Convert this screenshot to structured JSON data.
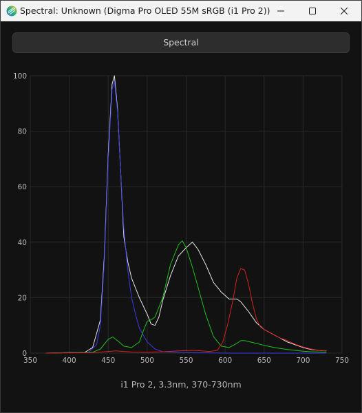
{
  "window": {
    "title": "Spectral: Unknown (Digma Pro OLED 55M sRGB (i1 Pro 2))",
    "controls": {
      "minimize": "minimize",
      "maximize": "maximize",
      "close": "close"
    }
  },
  "toolbar": {
    "button_label": "Spectral"
  },
  "colors": {
    "background": "#121212",
    "grid": "#2a2a2a",
    "white_series": "#e6e6e6",
    "blue_series": "#3a3ae8",
    "green_series": "#22c022",
    "red_series": "#d82020",
    "tick_text": "#bdbdbd"
  },
  "footer": {
    "caption": "i1 Pro 2, 3.3nm, 370-730nm"
  },
  "chart_data": {
    "type": "line",
    "title": "",
    "xlabel": "",
    "ylabel": "",
    "xlim": [
      350,
      750
    ],
    "ylim": [
      0,
      100
    ],
    "x_ticks": [
      350,
      400,
      450,
      500,
      550,
      600,
      650,
      700,
      750
    ],
    "y_ticks": [
      0,
      20,
      40,
      60,
      80,
      100
    ],
    "grid": true,
    "legend": "none",
    "series": [
      {
        "color": "#e6e6e6",
        "points": [
          [
            370,
            0
          ],
          [
            420,
            0.3
          ],
          [
            430,
            2
          ],
          [
            440,
            12
          ],
          [
            445,
            35
          ],
          [
            450,
            72
          ],
          [
            455,
            97
          ],
          [
            458,
            100
          ],
          [
            462,
            88
          ],
          [
            466,
            65
          ],
          [
            470,
            42
          ],
          [
            475,
            33
          ],
          [
            480,
            27
          ],
          [
            490,
            20
          ],
          [
            500,
            14
          ],
          [
            505,
            10.5
          ],
          [
            510,
            10
          ],
          [
            515,
            13
          ],
          [
            520,
            19
          ],
          [
            530,
            28
          ],
          [
            540,
            35
          ],
          [
            550,
            38
          ],
          [
            558,
            40
          ],
          [
            565,
            37.5
          ],
          [
            575,
            32
          ],
          [
            585,
            25.5
          ],
          [
            595,
            22
          ],
          [
            605,
            19.5
          ],
          [
            615,
            19.5
          ],
          [
            620,
            18.5
          ],
          [
            630,
            15
          ],
          [
            640,
            11
          ],
          [
            650,
            8.5
          ],
          [
            660,
            7
          ],
          [
            670,
            5.5
          ],
          [
            680,
            4
          ],
          [
            690,
            3
          ],
          [
            700,
            2
          ],
          [
            710,
            1.3
          ],
          [
            720,
            1
          ],
          [
            730,
            0.8
          ]
        ]
      },
      {
        "color": "#3a3ae8",
        "points": [
          [
            370,
            0
          ],
          [
            425,
            0.3
          ],
          [
            435,
            3
          ],
          [
            440,
            10
          ],
          [
            445,
            33
          ],
          [
            450,
            70
          ],
          [
            455,
            95
          ],
          [
            458,
            98
          ],
          [
            462,
            87
          ],
          [
            466,
            65
          ],
          [
            470,
            45
          ],
          [
            475,
            30
          ],
          [
            480,
            20
          ],
          [
            485,
            14
          ],
          [
            490,
            9
          ],
          [
            500,
            4
          ],
          [
            510,
            1.5
          ],
          [
            520,
            0.5
          ],
          [
            540,
            0.3
          ],
          [
            600,
            0
          ],
          [
            730,
            0
          ]
        ]
      },
      {
        "color": "#22c022",
        "points": [
          [
            370,
            0
          ],
          [
            430,
            0.3
          ],
          [
            440,
            1.5
          ],
          [
            450,
            5
          ],
          [
            456,
            5.8
          ],
          [
            462,
            4.5
          ],
          [
            470,
            2.5
          ],
          [
            480,
            2
          ],
          [
            490,
            4
          ],
          [
            495,
            8
          ],
          [
            500,
            11.5
          ],
          [
            505,
            12
          ],
          [
            510,
            13
          ],
          [
            520,
            20
          ],
          [
            530,
            32
          ],
          [
            540,
            39
          ],
          [
            545,
            40.5
          ],
          [
            550,
            38
          ],
          [
            558,
            31
          ],
          [
            565,
            24
          ],
          [
            575,
            14
          ],
          [
            585,
            6
          ],
          [
            595,
            2.5
          ],
          [
            605,
            2
          ],
          [
            615,
            3.5
          ],
          [
            620,
            4.5
          ],
          [
            625,
            4.5
          ],
          [
            630,
            4.2
          ],
          [
            640,
            3.5
          ],
          [
            650,
            2.8
          ],
          [
            660,
            2.2
          ],
          [
            670,
            1.7
          ],
          [
            680,
            1.3
          ],
          [
            690,
            1
          ],
          [
            700,
            0.7
          ],
          [
            710,
            0.5
          ],
          [
            730,
            0.3
          ]
        ]
      },
      {
        "color": "#d82020",
        "points": [
          [
            370,
            0
          ],
          [
            430,
            0.2
          ],
          [
            450,
            0.6
          ],
          [
            460,
            0.8
          ],
          [
            470,
            0.6
          ],
          [
            480,
            0.4
          ],
          [
            500,
            0.3
          ],
          [
            520,
            0.5
          ],
          [
            540,
            0.8
          ],
          [
            560,
            1
          ],
          [
            580,
            0.6
          ],
          [
            590,
            1
          ],
          [
            597,
            4
          ],
          [
            603,
            10
          ],
          [
            610,
            19
          ],
          [
            615,
            27
          ],
          [
            620,
            30.5
          ],
          [
            625,
            30
          ],
          [
            630,
            25
          ],
          [
            635,
            18
          ],
          [
            640,
            12.5
          ],
          [
            645,
            9.5
          ],
          [
            650,
            8.5
          ],
          [
            660,
            7
          ],
          [
            670,
            5.5
          ],
          [
            680,
            4.5
          ],
          [
            690,
            3.2
          ],
          [
            700,
            2.2
          ],
          [
            710,
            1.5
          ],
          [
            720,
            1
          ],
          [
            730,
            0.8
          ]
        ]
      }
    ]
  }
}
